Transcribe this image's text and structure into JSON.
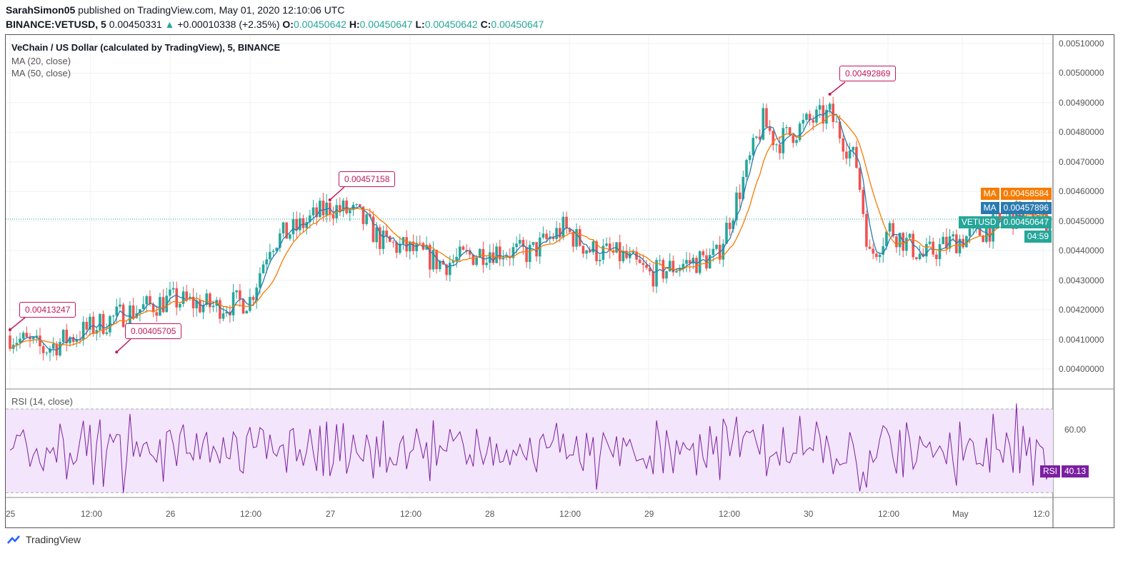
{
  "header": {
    "author": "SarahSimon05",
    "published": "published on TradingView.com, May 01, 2020 12:10:06 UTC",
    "symbol": "BINANCE:VETUSD, 5",
    "price": "0.00450331",
    "change": "+0.00010338 (+2.35%)",
    "o_label": "O:",
    "o": "0.00450642",
    "h_label": "H:",
    "h": "0.00450647",
    "l_label": "L:",
    "l": "0.00450642",
    "c_label": "C:",
    "c": "0.00450647"
  },
  "legend": {
    "title": "VeChain / US Dollar (calculated by TradingView), 5, BINANCE",
    "ma20": "MA (20, close)",
    "ma50": "MA (50, close)",
    "rsi": "RSI (14, close)"
  },
  "tags": {
    "ma1_label": "MA",
    "ma1_value": "0.00458584",
    "ma2_label": "MA",
    "ma2_value": "0.00457896",
    "sym_label": "VETUSD",
    "sym_value": "0.00450647",
    "countdown": "04:59",
    "rsi_label": "RSI",
    "rsi_value": "40.13"
  },
  "colors": {
    "up": "#26a69a",
    "down": "#ef5350",
    "ma20": "#2a7ab0",
    "ma50": "#f57c00",
    "rsi": "#7b1fa2",
    "rsi_band": "#f3e5fb",
    "annotation": "#c2185b"
  },
  "footer": {
    "brand": "TradingView"
  },
  "chart_data": {
    "type": "candlestick",
    "price_axis": {
      "ticks": [
        "0.00510000",
        "0.00500000",
        "0.00490000",
        "0.00480000",
        "0.00470000",
        "0.00460000",
        "0.00450000",
        "0.00440000",
        "0.00430000",
        "0.00420000",
        "0.00410000",
        "0.00400000"
      ],
      "range": [
        0.00394,
        0.00512
      ]
    },
    "rsi_axis": {
      "ticks": [
        "60.00"
      ],
      "band": [
        30,
        70
      ],
      "range": [
        22,
        80
      ]
    },
    "time_ticks": [
      "25",
      "12:00",
      "26",
      "12:00",
      "27",
      "12:00",
      "28",
      "12:00",
      "29",
      "12:00",
      "30",
      "12:00",
      "May",
      "12:0"
    ],
    "approx_path": [
      [
        "2020-04-25 00:00",
        0.004113
      ],
      [
        "2020-04-25 05:00",
        0.004065
      ],
      [
        "2020-04-25 12:00",
        0.004137
      ],
      [
        "2020-04-25 17:00",
        0.004186
      ],
      [
        "2020-04-26 00:00",
        0.004234
      ],
      [
        "2020-04-26 07:00",
        0.00421
      ],
      [
        "2020-04-26 12:00",
        0.004234
      ],
      [
        "2020-04-26 15:00",
        0.004427
      ],
      [
        "2020-04-26 19:00",
        0.004475
      ],
      [
        "2020-04-27 00:00",
        0.004548
      ],
      [
        "2020-04-27 04:00",
        0.004523
      ],
      [
        "2020-04-27 08:00",
        0.004427
      ],
      [
        "2020-04-27 12:00",
        0.004403
      ],
      [
        "2020-04-27 17:00",
        0.004355
      ],
      [
        "2020-04-28 00:00",
        0.004403
      ],
      [
        "2020-04-28 06:00",
        0.004391
      ],
      [
        "2020-04-28 11:00",
        0.004475
      ],
      [
        "2020-04-28 15:00",
        0.004403
      ],
      [
        "2020-04-28 20:00",
        0.004379
      ],
      [
        "2020-04-29 00:00",
        0.004318
      ],
      [
        "2020-04-29 05:00",
        0.004355
      ],
      [
        "2020-04-29 10:00",
        0.004379
      ],
      [
        "2020-04-29 13:00",
        0.004572
      ],
      [
        "2020-04-29 17:00",
        0.004837
      ],
      [
        "2020-04-29 19:00",
        0.004765
      ],
      [
        "2020-04-30 00:00",
        0.004837
      ],
      [
        "2020-04-30 03:00",
        0.004861
      ],
      [
        "2020-04-30 07:00",
        0.004692
      ],
      [
        "2020-04-30 09:00",
        0.004379
      ],
      [
        "2020-04-30 12:00",
        0.004475
      ],
      [
        "2020-04-30 17:00",
        0.004379
      ],
      [
        "2020-04-30 21:00",
        0.004427
      ],
      [
        "2020-05-01 00:00",
        0.00445
      ],
      [
        "2020-05-01 03:00",
        0.004475
      ],
      [
        "2020-05-01 07:00",
        0.004523
      ],
      [
        "2020-05-01 12:00",
        0.004506
      ]
    ],
    "last_price": 0.00450647,
    "annotations": [
      {
        "text": "0.00413247",
        "time": "2020-04-25 00:00",
        "value": 0.00413247
      },
      {
        "text": "0.00405705",
        "time": "2020-04-25 16:00",
        "value": 0.00405705
      },
      {
        "text": "0.00457158",
        "time": "2020-04-27 00:00",
        "value": 0.00457158
      },
      {
        "text": "0.00492869",
        "time": "2020-04-30 03:00",
        "value": 0.00492869
      }
    ],
    "rsi_last": 40.13
  }
}
